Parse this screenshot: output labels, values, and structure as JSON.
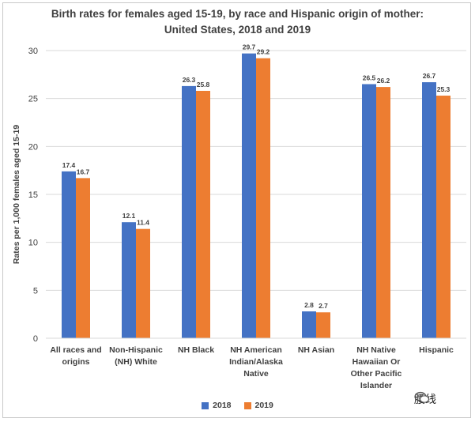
{
  "title_line1": "Birth rates for females aged 15-19, by race and Hispanic origin of mother:",
  "title_line2": "United States, 2018 and 2019",
  "watermark_text": "腰线",
  "chart_data": {
    "type": "bar",
    "ylabel": "Rates per 1,000 females aged 15-19",
    "xlabel": "",
    "ylim": [
      0,
      30
    ],
    "yticks": [
      0,
      5,
      10,
      15,
      20,
      25,
      30
    ],
    "grid": true,
    "legend_position": "bottom",
    "categories": [
      [
        "All races and",
        "origins"
      ],
      [
        "Non-Hispanic",
        "(NH) White"
      ],
      [
        "NH Black"
      ],
      [
        "NH American",
        "Indian/Alaska",
        "Native"
      ],
      [
        "NH Asian"
      ],
      [
        "NH Native",
        "Hawaiian Or",
        "Other Pacific",
        "Islander"
      ],
      [
        "Hispanic"
      ]
    ],
    "series": [
      {
        "name": "2018",
        "color": "#4472c4",
        "values": [
          17.4,
          12.1,
          26.3,
          29.7,
          2.8,
          26.5,
          26.7
        ],
        "labels": [
          "17.4",
          "12.1",
          "26.3",
          "29.7",
          "2.8",
          "26.5",
          "26.7"
        ]
      },
      {
        "name": "2019",
        "color": "#ed7d31",
        "values": [
          16.7,
          11.4,
          25.8,
          29.2,
          2.7,
          26.2,
          25.3
        ],
        "labels": [
          "16.7",
          "11.4",
          "25.8",
          "29.2",
          "2.7",
          "26.2",
          "25.3"
        ]
      }
    ]
  }
}
